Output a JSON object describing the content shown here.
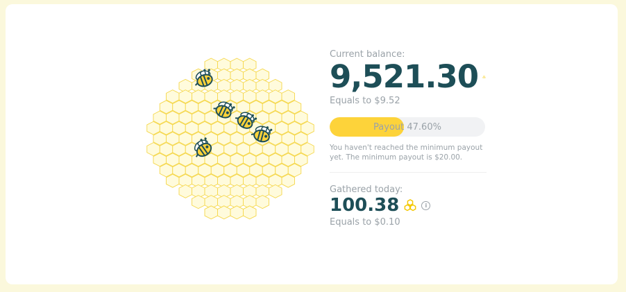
{
  "balance": {
    "label": "Current balance:",
    "value": "9,521.30",
    "equals": "Equals to $9.52",
    "icon": "honeycomb-icon"
  },
  "payout": {
    "label": "Payout 47.60%",
    "progress_percent": 47.6,
    "note": "You haven't reached the minimum payout yet. The minimum payout is $20.00."
  },
  "today": {
    "label": "Gathered today:",
    "value": "100.38",
    "equals": "Equals to $0.10",
    "info_icon": "info-icon"
  },
  "colors": {
    "accent": "#fdd33a",
    "text_dark": "#1d4e57",
    "text_muted": "#9aa2a8",
    "hex_fill": "#fffbdc",
    "hex_stroke": "#f5d74a"
  }
}
